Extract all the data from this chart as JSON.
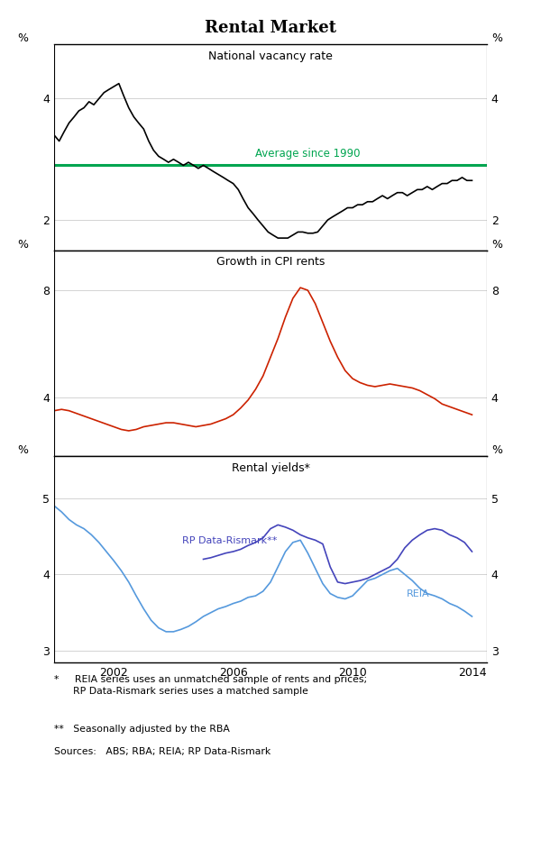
{
  "title": "Rental Market",
  "panel1_title": "National vacancy rate",
  "panel2_title": "Growth in CPI rents",
  "panel3_title": "Rental yields*",
  "avg_label": "Average since 1990",
  "avg_value": 2.9,
  "avg_color": "#00a550",
  "rp_label": "RP Data-Rismark**",
  "reia_label": "REIA",
  "rp_color": "#4444bb",
  "reia_color": "#5599dd",
  "cpi_color": "#cc2200",
  "vacancy_color": "#000000",
  "footnote1": "*     REIA series uses an unmatched sample of rents and prices;\n      RP Data-Rismark series uses a matched sample",
  "footnote2": "**   Seasonally adjusted by the RBA",
  "sources": "Sources:   ABS; RBA; REIA; RP Data-Rismark",
  "panel1_ylim": [
    1.5,
    4.9
  ],
  "panel1_yticks": [
    2,
    4
  ],
  "panel2_ylim": [
    1.8,
    9.5
  ],
  "panel2_yticks": [
    4,
    8
  ],
  "panel3_ylim": [
    2.85,
    5.55
  ],
  "panel3_yticks": [
    3,
    4,
    5
  ],
  "xmin": 2000.0,
  "xmax": 2014.5,
  "xticks": [
    2002,
    2006,
    2010,
    2014
  ],
  "xlabels": [
    "2002",
    "2006",
    "2010",
    "2014"
  ],
  "vacancy_x": [
    2000.0,
    2000.17,
    2000.33,
    2000.5,
    2000.67,
    2000.83,
    2001.0,
    2001.17,
    2001.33,
    2001.5,
    2001.67,
    2001.83,
    2002.0,
    2002.17,
    2002.33,
    2002.5,
    2002.67,
    2002.83,
    2003.0,
    2003.17,
    2003.33,
    2003.5,
    2003.67,
    2003.83,
    2004.0,
    2004.17,
    2004.33,
    2004.5,
    2004.67,
    2004.83,
    2005.0,
    2005.17,
    2005.33,
    2005.5,
    2005.67,
    2005.83,
    2006.0,
    2006.17,
    2006.33,
    2006.5,
    2006.67,
    2006.83,
    2007.0,
    2007.17,
    2007.33,
    2007.5,
    2007.67,
    2007.83,
    2008.0,
    2008.17,
    2008.33,
    2008.5,
    2008.67,
    2008.83,
    2009.0,
    2009.17,
    2009.33,
    2009.5,
    2009.67,
    2009.83,
    2010.0,
    2010.17,
    2010.33,
    2010.5,
    2010.67,
    2010.83,
    2011.0,
    2011.17,
    2011.33,
    2011.5,
    2011.67,
    2011.83,
    2012.0,
    2012.17,
    2012.33,
    2012.5,
    2012.67,
    2012.83,
    2013.0,
    2013.17,
    2013.33,
    2013.5,
    2013.67,
    2013.83,
    2014.0
  ],
  "vacancy_y": [
    3.4,
    3.3,
    3.45,
    3.6,
    3.7,
    3.8,
    3.85,
    3.95,
    3.9,
    4.0,
    4.1,
    4.15,
    4.2,
    4.25,
    4.05,
    3.85,
    3.7,
    3.6,
    3.5,
    3.3,
    3.15,
    3.05,
    3.0,
    2.95,
    3.0,
    2.95,
    2.9,
    2.95,
    2.9,
    2.85,
    2.9,
    2.85,
    2.8,
    2.75,
    2.7,
    2.65,
    2.6,
    2.5,
    2.35,
    2.2,
    2.1,
    2.0,
    1.9,
    1.8,
    1.75,
    1.7,
    1.7,
    1.7,
    1.75,
    1.8,
    1.8,
    1.78,
    1.78,
    1.8,
    1.9,
    2.0,
    2.05,
    2.1,
    2.15,
    2.2,
    2.2,
    2.25,
    2.25,
    2.3,
    2.3,
    2.35,
    2.4,
    2.35,
    2.4,
    2.45,
    2.45,
    2.4,
    2.45,
    2.5,
    2.5,
    2.55,
    2.5,
    2.55,
    2.6,
    2.6,
    2.65,
    2.65,
    2.7,
    2.65,
    2.65
  ],
  "cpi_x": [
    2000.0,
    2000.25,
    2000.5,
    2000.75,
    2001.0,
    2001.25,
    2001.5,
    2001.75,
    2002.0,
    2002.25,
    2002.5,
    2002.75,
    2003.0,
    2003.25,
    2003.5,
    2003.75,
    2004.0,
    2004.25,
    2004.5,
    2004.75,
    2005.0,
    2005.25,
    2005.5,
    2005.75,
    2006.0,
    2006.25,
    2006.5,
    2006.75,
    2007.0,
    2007.25,
    2007.5,
    2007.75,
    2008.0,
    2008.25,
    2008.5,
    2008.75,
    2009.0,
    2009.25,
    2009.5,
    2009.75,
    2010.0,
    2010.25,
    2010.5,
    2010.75,
    2011.0,
    2011.25,
    2011.5,
    2011.75,
    2012.0,
    2012.25,
    2012.5,
    2012.75,
    2013.0,
    2013.25,
    2013.5,
    2013.75,
    2014.0
  ],
  "cpi_y": [
    3.5,
    3.55,
    3.5,
    3.4,
    3.3,
    3.2,
    3.1,
    3.0,
    2.9,
    2.8,
    2.75,
    2.8,
    2.9,
    2.95,
    3.0,
    3.05,
    3.05,
    3.0,
    2.95,
    2.9,
    2.95,
    3.0,
    3.1,
    3.2,
    3.35,
    3.6,
    3.9,
    4.3,
    4.8,
    5.5,
    6.2,
    7.0,
    7.7,
    8.1,
    8.0,
    7.5,
    6.8,
    6.1,
    5.5,
    5.0,
    4.7,
    4.55,
    4.45,
    4.4,
    4.45,
    4.5,
    4.45,
    4.4,
    4.35,
    4.25,
    4.1,
    3.95,
    3.75,
    3.65,
    3.55,
    3.45,
    3.35
  ],
  "rp_x": [
    2005.0,
    2005.25,
    2005.5,
    2005.75,
    2006.0,
    2006.25,
    2006.5,
    2006.75,
    2007.0,
    2007.25,
    2007.5,
    2007.75,
    2008.0,
    2008.25,
    2008.5,
    2008.75,
    2009.0,
    2009.25,
    2009.5,
    2009.75,
    2010.0,
    2010.25,
    2010.5,
    2010.75,
    2011.0,
    2011.25,
    2011.5,
    2011.75,
    2012.0,
    2012.25,
    2012.5,
    2012.75,
    2013.0,
    2013.25,
    2013.5,
    2013.75,
    2014.0
  ],
  "rp_y": [
    4.2,
    4.22,
    4.25,
    4.28,
    4.3,
    4.33,
    4.38,
    4.42,
    4.48,
    4.6,
    4.65,
    4.62,
    4.58,
    4.52,
    4.48,
    4.45,
    4.4,
    4.1,
    3.9,
    3.88,
    3.9,
    3.92,
    3.95,
    4.0,
    4.05,
    4.1,
    4.2,
    4.35,
    4.45,
    4.52,
    4.58,
    4.6,
    4.58,
    4.52,
    4.48,
    4.42,
    4.3
  ],
  "reia_x": [
    2000.0,
    2000.25,
    2000.5,
    2000.75,
    2001.0,
    2001.25,
    2001.5,
    2001.75,
    2002.0,
    2002.25,
    2002.5,
    2002.75,
    2003.0,
    2003.25,
    2003.5,
    2003.75,
    2004.0,
    2004.25,
    2004.5,
    2004.75,
    2005.0,
    2005.25,
    2005.5,
    2005.75,
    2006.0,
    2006.25,
    2006.5,
    2006.75,
    2007.0,
    2007.25,
    2007.5,
    2007.75,
    2008.0,
    2008.25,
    2008.5,
    2008.75,
    2009.0,
    2009.25,
    2009.5,
    2009.75,
    2010.0,
    2010.25,
    2010.5,
    2010.75,
    2011.0,
    2011.25,
    2011.5,
    2011.75,
    2012.0,
    2012.25,
    2012.5,
    2012.75,
    2013.0,
    2013.25,
    2013.5,
    2013.75,
    2014.0
  ],
  "reia_y": [
    4.9,
    4.82,
    4.72,
    4.65,
    4.6,
    4.52,
    4.42,
    4.3,
    4.18,
    4.05,
    3.9,
    3.72,
    3.55,
    3.4,
    3.3,
    3.25,
    3.25,
    3.28,
    3.32,
    3.38,
    3.45,
    3.5,
    3.55,
    3.58,
    3.62,
    3.65,
    3.7,
    3.72,
    3.78,
    3.9,
    4.1,
    4.3,
    4.42,
    4.45,
    4.28,
    4.08,
    3.88,
    3.75,
    3.7,
    3.68,
    3.72,
    3.82,
    3.92,
    3.95,
    4.0,
    4.05,
    4.08,
    4.0,
    3.92,
    3.82,
    3.75,
    3.72,
    3.68,
    3.62,
    3.58,
    3.52,
    3.45
  ]
}
